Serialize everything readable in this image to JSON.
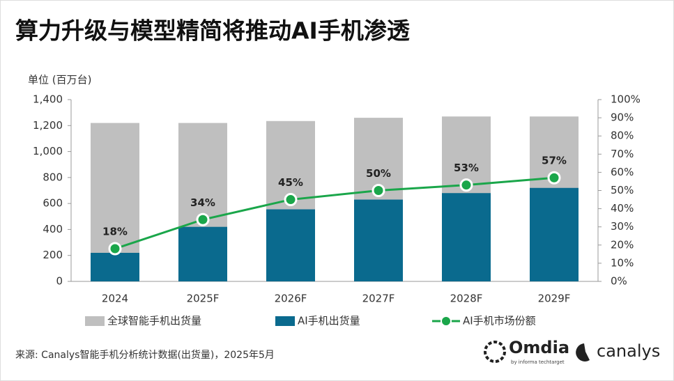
{
  "chart_data": {
    "type": "bar",
    "title": "算力升级与模型精简将推动AI手机渗透",
    "y_label": "单位 (百万台)",
    "source": "来源: Canalys智能手机分析统计数据(出货量)，2025年5月",
    "logos": [
      "Omdia",
      "by informa techtarget",
      "canalys"
    ],
    "barmode": "overlay",
    "categories": [
      "2024",
      "2025F",
      "2026F",
      "2027F",
      "2028F",
      "2029F"
    ],
    "series": [
      {
        "name": "全球智能手机出货量",
        "color": "#bfbfbf",
        "type": "bar",
        "values": [
          1220,
          1220,
          1235,
          1260,
          1270,
          1270
        ]
      },
      {
        "name": "AI手机出货量",
        "color": "#0a6a8e",
        "type": "bar",
        "values": [
          220,
          420,
          555,
          630,
          680,
          720
        ]
      },
      {
        "name": "AI手机市场份额",
        "color": "#1aa64a",
        "type": "line",
        "axis": "y2",
        "values": [
          18,
          34,
          45,
          50,
          53,
          57
        ],
        "value_labels": [
          "18%",
          "34%",
          "45%",
          "50%",
          "53%",
          "57%"
        ]
      }
    ],
    "ylim": [
      0,
      1400
    ],
    "yticks": [
      0,
      200,
      400,
      600,
      800,
      {
        "value": 1000,
        "label": "1,000"
      },
      {
        "value": 1200,
        "label": "1,200"
      },
      {
        "value": 1400,
        "label": "1,400"
      }
    ],
    "y2lim": [
      0,
      100
    ],
    "y2ticks": [
      {
        "value": 0,
        "label": "0%"
      },
      {
        "value": 10,
        "label": "10%"
      },
      {
        "value": 20,
        "label": "20%"
      },
      {
        "value": 30,
        "label": "30%"
      },
      {
        "value": 40,
        "label": "40%"
      },
      {
        "value": 50,
        "label": "50%"
      },
      {
        "value": 60,
        "label": "60%"
      },
      {
        "value": 70,
        "label": "70%"
      },
      {
        "value": 80,
        "label": "80%"
      },
      {
        "value": 90,
        "label": "90%"
      },
      {
        "value": 100,
        "label": "100%"
      }
    ],
    "grid": false,
    "legend": "bottom"
  }
}
